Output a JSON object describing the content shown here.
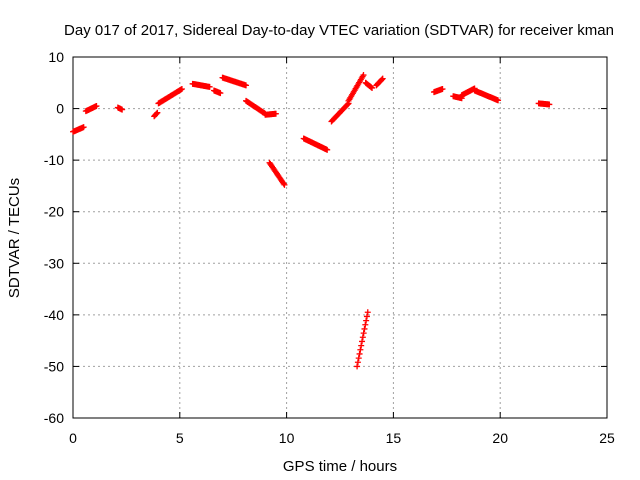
{
  "chart_data": {
    "type": "scatter",
    "title": "Day 017 of 2017, Sidereal Day-to-day VTEC variation (SDTVAR) for receiver kman",
    "xlabel": "GPS time / hours",
    "ylabel": "SDTVAR / TECUs",
    "xlim": [
      0,
      25
    ],
    "ylim": [
      -60,
      10
    ],
    "xticks": [
      0,
      5,
      10,
      15,
      20,
      25
    ],
    "xtick_labels": [
      "0",
      "5",
      "10",
      "15",
      "20",
      "25"
    ],
    "yticks": [
      10,
      0,
      -10,
      -20,
      -30,
      -40,
      -50,
      -60
    ],
    "ytick_labels": [
      "10",
      "0",
      "-10",
      "-20",
      "-30",
      "-40",
      "-50",
      "-60"
    ],
    "grid": true,
    "marker": "plus",
    "color": "#ff0000",
    "segments": [
      {
        "x0": 0.0,
        "x1": 0.5,
        "y0": -4.5,
        "y1": -3.6
      },
      {
        "x0": 0.6,
        "x1": 1.1,
        "y0": -0.5,
        "y1": 0.5
      },
      {
        "x0": 2.1,
        "x1": 2.3,
        "y0": 0.2,
        "y1": -0.2
      },
      {
        "x0": 3.8,
        "x1": 3.95,
        "y0": -1.5,
        "y1": -0.8
      },
      {
        "x0": 4.0,
        "x1": 5.1,
        "y0": 1.0,
        "y1": 3.8
      },
      {
        "x0": 5.6,
        "x1": 6.4,
        "y0": 4.8,
        "y1": 4.2
      },
      {
        "x0": 6.6,
        "x1": 6.9,
        "y0": 3.5,
        "y1": 3.0
      },
      {
        "x0": 7.0,
        "x1": 8.1,
        "y0": 6.0,
        "y1": 4.5
      },
      {
        "x0": 8.1,
        "x1": 9.0,
        "y0": 1.5,
        "y1": -1.0
      },
      {
        "x0": 9.0,
        "x1": 9.5,
        "y0": -1.2,
        "y1": -1.0
      },
      {
        "x0": 9.2,
        "x1": 9.9,
        "y0": -10.5,
        "y1": -14.8
      },
      {
        "x0": 10.8,
        "x1": 11.9,
        "y0": -5.8,
        "y1": -8.0
      },
      {
        "x0": 12.1,
        "x1": 12.9,
        "y0": -2.5,
        "y1": 1.0
      },
      {
        "x0": 12.9,
        "x1": 13.6,
        "y0": 1.5,
        "y1": 6.5
      },
      {
        "x0": 13.3,
        "x1": 13.8,
        "y0": -50.0,
        "y1": -39.5
      },
      {
        "x0": 13.7,
        "x1": 14.0,
        "y0": 5.0,
        "y1": 4.0
      },
      {
        "x0": 14.2,
        "x1": 14.5,
        "y0": 4.5,
        "y1": 5.8
      },
      {
        "x0": 16.9,
        "x1": 17.3,
        "y0": 3.2,
        "y1": 3.8
      },
      {
        "x0": 17.8,
        "x1": 18.2,
        "y0": 2.4,
        "y1": 2.0
      },
      {
        "x0": 18.2,
        "x1": 18.8,
        "y0": 2.6,
        "y1": 3.9
      },
      {
        "x0": 18.8,
        "x1": 19.9,
        "y0": 3.5,
        "y1": 1.6
      },
      {
        "x0": 21.8,
        "x1": 22.3,
        "y0": 1.0,
        "y1": 0.8
      }
    ]
  }
}
